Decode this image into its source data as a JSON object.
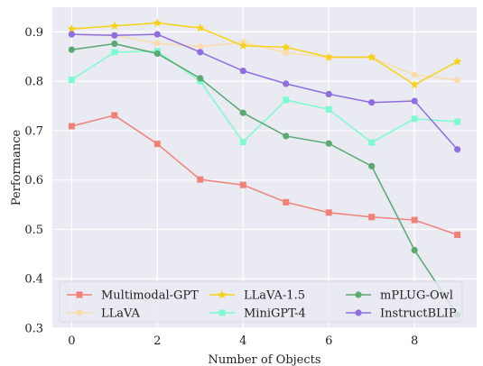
{
  "chart_data": {
    "type": "line",
    "title": "",
    "xlabel": "Number of Objects",
    "ylabel": "Performance",
    "xlim": [
      -0.45,
      9.45
    ],
    "ylim": [
      0.3,
      0.95
    ],
    "xticks": [
      "0",
      "2",
      "4",
      "6",
      "8"
    ],
    "yticks": [
      "0.3",
      "0.4",
      "0.5",
      "0.6",
      "0.7",
      "0.8",
      "0.9"
    ],
    "grid": true,
    "legend_position": "bottom-left",
    "background": "#eaeaf2",
    "x": [
      0,
      1,
      2,
      3,
      4,
      5,
      6,
      7,
      8,
      9
    ],
    "series": [
      {
        "name": "Multimodal-GPT",
        "color": "#f08078",
        "marker": "square",
        "values": [
          0.709,
          0.731,
          0.673,
          0.601,
          0.59,
          0.555,
          0.534,
          0.525,
          0.519,
          0.489
        ]
      },
      {
        "name": "LLaVA",
        "color": "#fbdcaa",
        "marker": "circle",
        "values": [
          0.895,
          0.893,
          0.877,
          0.87,
          0.879,
          0.858,
          0.848,
          0.848,
          0.813,
          0.802
        ]
      },
      {
        "name": "LLaVA-1.5",
        "color": "#f6d11a",
        "marker": "star",
        "values": [
          0.906,
          0.912,
          0.918,
          0.908,
          0.872,
          0.869,
          0.849,
          0.849,
          0.793,
          0.84
        ]
      },
      {
        "name": "MiniGPT-4",
        "color": "#7dfad0",
        "marker": "square",
        "values": [
          0.803,
          0.859,
          0.861,
          0.8,
          0.677,
          0.762,
          0.743,
          0.676,
          0.724,
          0.718
        ]
      },
      {
        "name": "mPLUG-Owl",
        "color": "#5aa872",
        "marker": "circle",
        "values": [
          0.864,
          0.876,
          0.856,
          0.806,
          0.736,
          0.689,
          0.674,
          0.628,
          0.458,
          0.327
        ]
      },
      {
        "name": "InstructBLIP",
        "color": "#8f6ee0",
        "marker": "circle",
        "values": [
          0.895,
          0.893,
          0.895,
          0.859,
          0.821,
          0.795,
          0.774,
          0.757,
          0.76,
          0.662
        ]
      }
    ]
  }
}
